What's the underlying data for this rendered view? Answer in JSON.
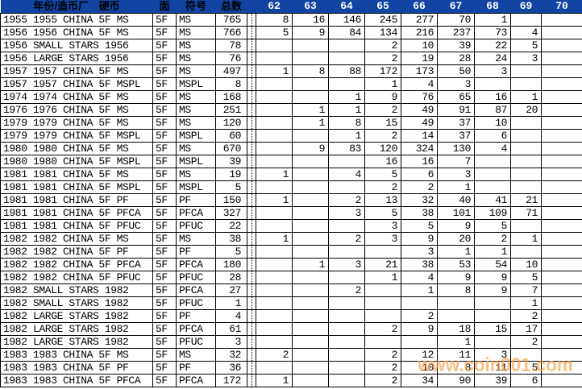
{
  "header": {
    "desc_label_part1": "年份/造币厂",
    "desc_label_part2": "硬币",
    "denom_label": "面",
    "code_label": "符号",
    "total_label": "总数",
    "grade_labels": [
      "62",
      "63",
      "64",
      "65",
      "66",
      "67",
      "68",
      "69",
      "70"
    ],
    "bg_color": "#1244A3",
    "grade_text_color": "#FFFFFF",
    "cjk_text_color": "#000000"
  },
  "rows": [
    {
      "desc": "1955 1955 CHINA 5F MS",
      "denom": "5F",
      "code": "MS",
      "total": "765",
      "grades": [
        "8",
        "16",
        "146",
        "245",
        "277",
        "70",
        "1",
        "",
        ""
      ]
    },
    {
      "desc": "1956 1956 CHINA 5F MS",
      "denom": "5F",
      "code": "MS",
      "total": "766",
      "grades": [
        "5",
        "9",
        "84",
        "134",
        "216",
        "237",
        "73",
        "4",
        ""
      ]
    },
    {
      "desc": "1956 SMALL STARS 1956",
      "denom": "5F",
      "code": "MS",
      "total": "78",
      "grades": [
        "",
        "",
        "",
        "2",
        "10",
        "39",
        "22",
        "5",
        ""
      ]
    },
    {
      "desc": "1956 LARGE STARS 1956",
      "denom": "5F",
      "code": "MS",
      "total": "76",
      "grades": [
        "",
        "",
        "",
        "2",
        "19",
        "28",
        "24",
        "3",
        ""
      ]
    },
    {
      "desc": "1957 1957 CHINA 5F MS",
      "denom": "5F",
      "code": "MS",
      "total": "497",
      "grades": [
        "1",
        "8",
        "88",
        "172",
        "173",
        "50",
        "3",
        "",
        ""
      ]
    },
    {
      "desc": "1957 1957 CHINA 5F MSPL",
      "denom": "5F",
      "code": "MSPL",
      "total": "8",
      "grades": [
        "",
        "",
        "",
        "1",
        "4",
        "3",
        "",
        "",
        ""
      ]
    },
    {
      "desc": "1974 1974 CHINA 5F MS",
      "denom": "5F",
      "code": "MS",
      "total": "168",
      "grades": [
        "",
        "",
        "1",
        "9",
        "76",
        "65",
        "16",
        "1",
        ""
      ]
    },
    {
      "desc": "1976 1976 CHINA 5F MS",
      "denom": "5F",
      "code": "MS",
      "total": "251",
      "grades": [
        "",
        "1",
        "1",
        "2",
        "49",
        "91",
        "87",
        "20",
        ""
      ]
    },
    {
      "desc": "1979 1979 CHINA 5F MS",
      "denom": "5F",
      "code": "MS",
      "total": "120",
      "grades": [
        "",
        "1",
        "8",
        "15",
        "49",
        "37",
        "10",
        "",
        ""
      ]
    },
    {
      "desc": "1979 1979 CHINA 5F MSPL",
      "denom": "5F",
      "code": "MSPL",
      "total": "60",
      "grades": [
        "",
        "",
        "1",
        "2",
        "14",
        "37",
        "6",
        "",
        ""
      ]
    },
    {
      "desc": "1980 1980 CHINA 5F MS",
      "denom": "5F",
      "code": "MS",
      "total": "670",
      "grades": [
        "",
        "9",
        "83",
        "120",
        "324",
        "130",
        "4",
        "",
        ""
      ]
    },
    {
      "desc": "1980 1980 CHINA 5F MSPL",
      "denom": "5F",
      "code": "MSPL",
      "total": "39",
      "grades": [
        "",
        "",
        "",
        "16",
        "16",
        "7",
        "",
        "",
        ""
      ]
    },
    {
      "desc": "1981 1981 CHINA 5F MS",
      "denom": "5F",
      "code": "MS",
      "total": "19",
      "grades": [
        "1",
        "",
        "4",
        "5",
        "6",
        "3",
        "",
        "",
        ""
      ]
    },
    {
      "desc": "1981 1981 CHINA 5F MSPL",
      "denom": "5F",
      "code": "MSPL",
      "total": "5",
      "grades": [
        "",
        "",
        "",
        "2",
        "2",
        "1",
        "",
        "",
        ""
      ]
    },
    {
      "desc": "1981 1981 CHINA 5F PF",
      "denom": "5F",
      "code": "PF",
      "total": "150",
      "grades": [
        "1",
        "",
        "2",
        "13",
        "32",
        "40",
        "41",
        "21",
        ""
      ]
    },
    {
      "desc": "1981 1981 CHINA 5F PFCA",
      "denom": "5F",
      "code": "PFCA",
      "total": "327",
      "grades": [
        "",
        "",
        "3",
        "5",
        "38",
        "101",
        "109",
        "71",
        ""
      ]
    },
    {
      "desc": "1981 1981 CHINA 5F PFUC",
      "denom": "5F",
      "code": "PFUC",
      "total": "22",
      "grades": [
        "",
        "",
        "",
        "3",
        "5",
        "9",
        "5",
        "",
        ""
      ]
    },
    {
      "desc": "1982 1982 CHINA 5F MS",
      "denom": "5F",
      "code": "MS",
      "total": "38",
      "grades": [
        "1",
        "",
        "2",
        "3",
        "9",
        "20",
        "2",
        "1",
        ""
      ]
    },
    {
      "desc": "1982 1982 CHINA 5F PF",
      "denom": "5F",
      "code": "PF",
      "total": "5",
      "grades": [
        "",
        "",
        "",
        "",
        "3",
        "1",
        "1",
        "",
        ""
      ]
    },
    {
      "desc": "1982 1982 CHINA 5F PFCA",
      "denom": "5F",
      "code": "PFCA",
      "total": "180",
      "grades": [
        "",
        "1",
        "3",
        "21",
        "38",
        "53",
        "54",
        "10",
        ""
      ]
    },
    {
      "desc": "1982 1982 CHINA 5F PFUC",
      "denom": "5F",
      "code": "PFUC",
      "total": "28",
      "grades": [
        "",
        "",
        "",
        "1",
        "4",
        "9",
        "9",
        "5",
        ""
      ]
    },
    {
      "desc": "1982 SMALL STARS 1982",
      "denom": "5F",
      "code": "PFCA",
      "total": "27",
      "grades": [
        "",
        "",
        "2",
        "",
        "1",
        "8",
        "9",
        "7",
        ""
      ]
    },
    {
      "desc": "1982 SMALL STARS 1982",
      "denom": "5F",
      "code": "PFUC",
      "total": "1",
      "grades": [
        "",
        "",
        "",
        "",
        "",
        "",
        "",
        "1",
        ""
      ]
    },
    {
      "desc": "1982 LARGE STARS 1982",
      "denom": "5F",
      "code": "PF",
      "total": "4",
      "grades": [
        "",
        "",
        "",
        "",
        "2",
        "",
        "",
        "2",
        ""
      ]
    },
    {
      "desc": "1982 LARGE STARS 1982",
      "denom": "5F",
      "code": "PFCA",
      "total": "61",
      "grades": [
        "",
        "",
        "",
        "2",
        "9",
        "18",
        "15",
        "17",
        ""
      ]
    },
    {
      "desc": "1982 LARGE STARS 1982",
      "denom": "5F",
      "code": "PFUC",
      "total": "3",
      "grades": [
        "",
        "",
        "",
        "",
        "",
        "1",
        "",
        "2",
        ""
      ]
    },
    {
      "desc": "1983 1983 CHINA 5F MS",
      "denom": "5F",
      "code": "MS",
      "total": "32",
      "grades": [
        "2",
        "",
        "",
        "2",
        "12",
        "11",
        "3",
        "",
        ""
      ]
    },
    {
      "desc": "1983 1983 CHINA 5F PF",
      "denom": "5F",
      "code": "PF",
      "total": "36",
      "grades": [
        "",
        "",
        "",
        "2",
        "10",
        "8",
        "11",
        "5",
        ""
      ]
    },
    {
      "desc": "1983 1983 CHINA 5F PFCA",
      "denom": "5F",
      "code": "PFCA",
      "total": "172",
      "grades": [
        "1",
        "",
        "",
        "2",
        "34",
        "90",
        "39",
        "6",
        ""
      ]
    }
  ],
  "watermark": {
    "text": "www.coin001.com",
    "color": "#F6A048"
  }
}
